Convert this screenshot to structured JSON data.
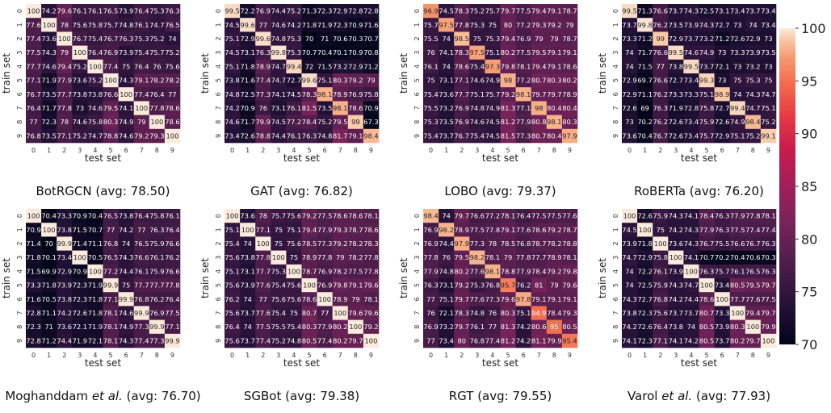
{
  "chart_data": [
    {
      "type": "heatmap",
      "caption": "BotRGCN (avg: 78.50)",
      "xlabel": "test set",
      "ylabel": "train set",
      "x_ticks": [
        "0",
        "1",
        "2",
        "3",
        "4",
        "5",
        "6",
        "7",
        "8",
        "9"
      ],
      "y_ticks": [
        "0",
        "1",
        "2",
        "3",
        "4",
        "5",
        "6",
        "7",
        "8",
        "9"
      ],
      "values": [
        [
          100,
          74.2,
          79.6,
          76.1,
          76.1,
          76.5,
          73.9,
          76.4,
          75.3,
          76.3
        ],
        [
          77.6,
          100,
          78,
          75.6,
          75.8,
          75.7,
          74.8,
          76.1,
          74.7,
          76.5
        ],
        [
          77.4,
          73.6,
          100,
          76.7,
          75.4,
          76.7,
          76.3,
          75.3,
          75.2,
          74
        ],
        [
          77.5,
          74.3,
          79,
          100,
          76.4,
          76.9,
          73.9,
          75.4,
          75.7,
          75.2
        ],
        [
          77.7,
          74.6,
          79.4,
          75.2,
          100,
          77.4,
          75,
          76.4,
          76,
          75.6
        ],
        [
          77.1,
          71.9,
          77.9,
          73.6,
          75.2,
          100,
          74.3,
          79.1,
          78.2,
          78.2
        ],
        [
          76.7,
          73.5,
          77.7,
          73.8,
          73.8,
          76.6,
          100,
          77.4,
          76.4,
          77
        ],
        [
          76.4,
          71.7,
          77.8,
          73,
          74.6,
          79.5,
          74.1,
          100,
          77.8,
          78.6
        ],
        [
          77,
          72.3,
          78,
          74.6,
          75.8,
          80.3,
          74.9,
          79,
          100,
          78.6
        ],
        [
          76.8,
          73.5,
          77.1,
          75.2,
          74.7,
          78.8,
          74.6,
          79.2,
          79.3,
          100
        ]
      ]
    },
    {
      "type": "heatmap",
      "caption": "GAT (avg: 76.82)",
      "xlabel": "test set",
      "ylabel": "train set",
      "x_ticks": [
        "0",
        "1",
        "2",
        "3",
        "4",
        "5",
        "6",
        "7",
        "8",
        "9"
      ],
      "y_ticks": [
        "0",
        "1",
        "2",
        "3",
        "4",
        "5",
        "6",
        "7",
        "8",
        "9"
      ],
      "values": [
        [
          99.5,
          72.2,
          76.9,
          74.4,
          75.2,
          71.3,
          72.3,
          72.9,
          72.8,
          72.8
        ],
        [
          74.5,
          99.6,
          77,
          74.6,
          74.2,
          71.8,
          71.9,
          72.3,
          70.9,
          71.6
        ],
        [
          75.1,
          72.9,
          99.6,
          74.8,
          75.3,
          70,
          71,
          70.6,
          70.3,
          70.7
        ],
        [
          74.5,
          73.1,
          76.3,
          99.8,
          75.3,
          70.7,
          70.4,
          70.1,
          70.9,
          70.8
        ],
        [
          75.1,
          71.8,
          78.9,
          74.7,
          99.4,
          72,
          71.5,
          73.2,
          72.9,
          71.2
        ],
        [
          73.8,
          71.6,
          77.4,
          74.7,
          72.7,
          99.6,
          75.1,
          80.3,
          79.2,
          79
        ],
        [
          74.8,
          72.5,
          77.3,
          74.1,
          74.5,
          78.3,
          98.1,
          78.9,
          76.9,
          75.8
        ],
        [
          74.2,
          70.9,
          76,
          73.1,
          76.1,
          81.5,
          73.5,
          98.1,
          78.6,
          70.9
        ],
        [
          74.6,
          71.7,
          79.9,
          74.5,
          77.2,
          78.4,
          75.2,
          79.5,
          99,
          67.3
        ],
        [
          73.4,
          72.6,
          78.8,
          74.4,
          76.1,
          76.3,
          74.8,
          81.7,
          79.1,
          98.4
        ]
      ]
    },
    {
      "type": "heatmap",
      "caption": "LOBO (avg: 79.37)",
      "xlabel": "test set",
      "ylabel": "train set",
      "x_ticks": [
        "0",
        "1",
        "2",
        "3",
        "4",
        "5",
        "6",
        "7",
        "8",
        "9"
      ],
      "y_ticks": [
        "0",
        "1",
        "2",
        "3",
        "4",
        "5",
        "6",
        "7",
        "8",
        "9"
      ],
      "values": [
        [
          96.9,
          74.5,
          78.3,
          75.2,
          75.7,
          79.7,
          77.5,
          79.4,
          79.1,
          78.7
        ],
        [
          75.7,
          97.5,
          77.8,
          75.3,
          75,
          80,
          77.2,
          79.3,
          79.2,
          79
        ],
        [
          75.5,
          74,
          98.5,
          75,
          75.3,
          79.4,
          76.9,
          79,
          79,
          78.7
        ],
        [
          76,
          74.1,
          78.3,
          97.5,
          75.1,
          80.2,
          77.5,
          79.5,
          79.1,
          79.1
        ],
        [
          76.1,
          74,
          78.6,
          75.4,
          97.3,
          79.8,
          78.1,
          79.4,
          79.1,
          78.6
        ],
        [
          75,
          73.1,
          77.1,
          74.6,
          74.9,
          98,
          77.2,
          80.7,
          80.3,
          80.2
        ],
        [
          75.4,
          73.6,
          77.7,
          75.1,
          75.7,
          79.2,
          98.1,
          79.7,
          79.7,
          78.9
        ],
        [
          75.5,
          73.2,
          76.9,
          74.8,
          74.9,
          81.3,
          77.1,
          98,
          80.4,
          80.4
        ],
        [
          75.3,
          73.5,
          76.9,
          74.6,
          74.5,
          81.2,
          77.9,
          80.8,
          98.1,
          80.3
        ],
        [
          75.4,
          73.7,
          76.7,
          75.4,
          74.5,
          81.5,
          77.3,
          80.7,
          80.4,
          97.9
        ]
      ]
    },
    {
      "type": "heatmap",
      "caption": "RoBERTa (avg: 76.20)",
      "xlabel": "test set",
      "ylabel": "train set",
      "x_ticks": [
        "0",
        "1",
        "2",
        "3",
        "4",
        "5",
        "6",
        "7",
        "8",
        "9"
      ],
      "y_ticks": [
        "0",
        "1",
        "2",
        "3",
        "4",
        "5",
        "6",
        "7",
        "8",
        "9"
      ],
      "values": [
        [
          99.5,
          71.3,
          76.6,
          73.7,
          74.3,
          72.5,
          73.1,
          73.4,
          73.7,
          73.4
        ],
        [
          73.7,
          99.8,
          76.2,
          73.5,
          73.9,
          74.3,
          72.7,
          73,
          74,
          73.4
        ],
        [
          73.3,
          71.2,
          99,
          72.9,
          73.7,
          73.2,
          71.2,
          72.6,
          72.9,
          73
        ],
        [
          74,
          71.7,
          76.6,
          99.5,
          74.6,
          74.9,
          73,
          73.3,
          73.9,
          73.5
        ],
        [
          74,
          71.5,
          77,
          73.8,
          99.5,
          73.7,
          72.1,
          73,
          73.2,
          73
        ],
        [
          72.9,
          69.7,
          76.6,
          72.7,
          73.4,
          99.3,
          73,
          75,
          75.3,
          75
        ],
        [
          72.9,
          71.1,
          76.2,
          73.3,
          73.3,
          75.1,
          98.9,
          74,
          74.3,
          74.7
        ],
        [
          72.6,
          69,
          76.3,
          71.9,
          72.8,
          75.8,
          72.7,
          99.4,
          74.7,
          75.1
        ],
        [
          73,
          70.2,
          76.2,
          72.6,
          73.4,
          75.9,
          72.6,
          74.9,
          98.4,
          75.2
        ],
        [
          73.6,
          70.4,
          76.7,
          72.6,
          73.4,
          75.7,
          72.9,
          75.1,
          75.2,
          99.1
        ]
      ]
    },
    {
      "type": "heatmap",
      "caption": "Moghanddam et al. (avg: 76.70)",
      "caption_parts": [
        "Moghanddam ",
        "et al.",
        " (avg: 76.70)"
      ],
      "xlabel": "test set",
      "ylabel": "train set",
      "x_ticks": [
        "0",
        "1",
        "2",
        "3",
        "4",
        "5",
        "6",
        "7",
        "8",
        "9"
      ],
      "y_ticks": [
        "0",
        "1",
        "2",
        "3",
        "4",
        "5",
        "6",
        "7",
        "8",
        "9"
      ],
      "values": [
        [
          100,
          70.4,
          73.3,
          70.9,
          70.4,
          76.5,
          73.8,
          76.4,
          75.8,
          76.1
        ],
        [
          70.9,
          100,
          73.8,
          71.5,
          70.7,
          77,
          74.2,
          77,
          76.3,
          76.4
        ],
        [
          71.4,
          70,
          99.9,
          71.4,
          71.1,
          76.8,
          74,
          76.5,
          75.9,
          76.6
        ],
        [
          71.8,
          70.1,
          73.4,
          100,
          70.5,
          76.5,
          74.3,
          76.6,
          76.1,
          76.2
        ],
        [
          71.5,
          69.9,
          72.9,
          70.9,
          100,
          77.2,
          74.4,
          76.1,
          75.9,
          76.6
        ],
        [
          73.3,
          71.8,
          73.9,
          72.3,
          71.9,
          99.9,
          75,
          77.7,
          77.7,
          77.8
        ],
        [
          71.6,
          70.5,
          73.8,
          72.3,
          71.8,
          77.1,
          99.9,
          76.8,
          76.2,
          76.4
        ],
        [
          72.8,
          71.1,
          74.2,
          72.6,
          71.8,
          78.1,
          74.6,
          99.9,
          76.9,
          77.5
        ],
        [
          72.3,
          71,
          73.6,
          72.1,
          71.9,
          78.1,
          74.9,
          77.3,
          99.9,
          77.1
        ],
        [
          72.8,
          71.2,
          74.4,
          71.9,
          72.1,
          78.1,
          74.3,
          77.4,
          77.3,
          99.9
        ]
      ]
    },
    {
      "type": "heatmap",
      "caption": "SGBot (avg: 79.38)",
      "xlabel": "test set",
      "ylabel": "train set",
      "x_ticks": [
        "0",
        "1",
        "2",
        "3",
        "4",
        "5",
        "6",
        "7",
        "8",
        "9"
      ],
      "y_ticks": [
        "0",
        "1",
        "2",
        "3",
        "4",
        "5",
        "6",
        "7",
        "8",
        "9"
      ],
      "values": [
        [
          100,
          73.6,
          78,
          75.7,
          75.6,
          79.2,
          77.5,
          78.6,
          78.6,
          78.1
        ],
        [
          75.1,
          100,
          77.1,
          75,
          75.1,
          79.4,
          77.9,
          79.3,
          78.7,
          78.6
        ],
        [
          75.4,
          74,
          100,
          75,
          75.6,
          78.5,
          77.3,
          79.2,
          78.2,
          78.3
        ],
        [
          75.6,
          73.8,
          77.8,
          100,
          75,
          78.9,
          77.8,
          79,
          78.2,
          77.8
        ],
        [
          75.1,
          73.1,
          77.7,
          75.3,
          100,
          78.7,
          76.9,
          78.2,
          77.5,
          77.8
        ],
        [
          75.6,
          73.9,
          77.6,
          75.4,
          75.6,
          100,
          76.9,
          79.8,
          79.1,
          79.6
        ],
        [
          76.2,
          74,
          77,
          75.6,
          75.6,
          78.6,
          100,
          78.9,
          79,
          78.1
        ],
        [
          75.6,
          73.7,
          77.6,
          75.4,
          75,
          80.7,
          77,
          100,
          79.6,
          79.6
        ],
        [
          76.4,
          74,
          77.5,
          75.5,
          75.4,
          80.3,
          77.9,
          80.2,
          100,
          79.2
        ],
        [
          75.6,
          73.7,
          77.4,
          75.2,
          74.8,
          80.5,
          77.4,
          80.2,
          79.7,
          100
        ]
      ]
    },
    {
      "type": "heatmap",
      "caption": "RGT (avg: 79.55)",
      "xlabel": "test set",
      "ylabel": "train set",
      "x_ticks": [
        "0",
        "1",
        "2",
        "3",
        "4",
        "5",
        "6",
        "7",
        "8",
        "9"
      ],
      "y_ticks": [
        "0",
        "1",
        "2",
        "3",
        "4",
        "5",
        "6",
        "7",
        "8",
        "9"
      ],
      "values": [
        [
          98.4,
          74,
          79.7,
          76.6,
          77.2,
          78.1,
          76.4,
          77.5,
          77.5,
          77.6
        ],
        [
          76.9,
          98.2,
          78.9,
          77.5,
          77.8,
          79.1,
          77.6,
          78.6,
          79.2,
          78.7
        ],
        [
          76.9,
          74.4,
          97.9,
          77.3,
          78,
          78.5,
          76.8,
          78.7,
          78.2,
          78.8
        ],
        [
          77.8,
          76,
          79.5,
          98.2,
          78.1,
          79,
          77.8,
          77.7,
          78.9,
          78.1
        ],
        [
          77.9,
          74.8,
          80.2,
          77.6,
          98.1,
          78.8,
          77.9,
          78.4,
          79.2,
          79.8
        ],
        [
          76.3,
          73.1,
          79.2,
          75.3,
          76.8,
          95.7,
          76.2,
          81,
          79,
          79.6
        ],
        [
          77,
          75.1,
          79.7,
          77.6,
          77.3,
          79.6,
          97.8,
          79.1,
          79.1,
          79.1
        ],
        [
          76,
          72.1,
          78.3,
          74.8,
          76,
          80.3,
          75.1,
          94.9,
          78.4,
          79.3
        ],
        [
          76.9,
          73.2,
          79.7,
          76.1,
          77,
          81.3,
          74.2,
          80.6,
          95,
          80.5
        ],
        [
          77,
          73.4,
          80,
          76.8,
          77.4,
          81.2,
          74.2,
          81.1,
          79.9,
          95.4
        ]
      ]
    },
    {
      "type": "heatmap",
      "caption": "Varol et al. (avg: 77.93)",
      "caption_parts": [
        "Varol ",
        "et al.",
        " (avg: 77.93)"
      ],
      "xlabel": "test set",
      "ylabel": "train set",
      "x_ticks": [
        "0",
        "1",
        "2",
        "3",
        "4",
        "5",
        "6",
        "7",
        "8",
        "9"
      ],
      "y_ticks": [
        "0",
        "1",
        "2",
        "3",
        "4",
        "5",
        "6",
        "7",
        "8",
        "9"
      ],
      "values": [
        [
          100,
          72.6,
          75.9,
          74.3,
          74.1,
          78.4,
          76.3,
          77.9,
          77.8,
          78.1
        ],
        [
          74.5,
          100,
          75,
          74.2,
          74.3,
          77.9,
          76.3,
          77.5,
          77.4,
          77.4
        ],
        [
          73.9,
          71.8,
          100,
          73.6,
          74.3,
          76.7,
          75.5,
          76.6,
          76.7,
          76.3
        ],
        [
          74.7,
          72.9,
          75.8,
          100,
          74.1,
          70.7,
          70.2,
          70.4,
          70.6,
          70.3
        ],
        [
          74,
          72.2,
          76.1,
          73.9,
          100,
          76.3,
          75.7,
          76.1,
          76.5,
          76.3
        ],
        [
          74,
          72.5,
          75.9,
          74.3,
          74.7,
          100,
          73.4,
          80.5,
          79.5,
          79.7
        ],
        [
          74.3,
          72.7,
          76.8,
          74.2,
          74.4,
          78.6,
          100,
          77.7,
          77.6,
          77.5
        ],
        [
          73.8,
          72.3,
          75.6,
          73.7,
          73.7,
          80.7,
          73.3,
          100,
          79.4,
          79.7
        ],
        [
          74.2,
          72.6,
          76.4,
          73.8,
          74.0,
          80.5,
          73.9,
          80.3,
          100,
          79.9
        ],
        [
          74.1,
          72.3,
          77.1,
          74.1,
          74.2,
          80.5,
          73.7,
          80.2,
          79.7,
          100
        ]
      ]
    }
  ],
  "colorbar": {
    "min": 70,
    "max": 100,
    "ticks": [
      "100",
      "95",
      "90",
      "85",
      "80",
      "75",
      "70"
    ],
    "tick_values": [
      100,
      95,
      90,
      85,
      80,
      75,
      70
    ],
    "colormap": "rocket"
  }
}
